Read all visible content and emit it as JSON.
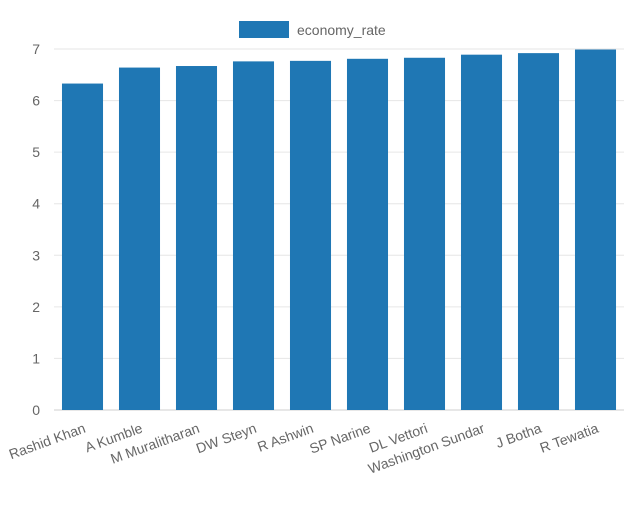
{
  "chart_data": {
    "type": "bar",
    "categories": [
      "Rashid Khan",
      "A Kumble",
      "M Muralitharan",
      "DW Steyn",
      "R Ashwin",
      "SP Narine",
      "DL Vettori",
      "Washington Sundar",
      "J Botha",
      "R Tewatia"
    ],
    "series": [
      {
        "name": "economy_rate",
        "values": [
          6.33,
          6.64,
          6.67,
          6.76,
          6.77,
          6.81,
          6.83,
          6.89,
          6.92,
          6.99
        ],
        "color": "#1f77b4"
      }
    ],
    "ylim": [
      0,
      7
    ],
    "yticks": [
      0,
      1,
      2,
      3,
      4,
      5,
      6,
      7
    ],
    "grid": true,
    "legend": "top-center",
    "title": "",
    "xlabel": "",
    "ylabel": ""
  }
}
